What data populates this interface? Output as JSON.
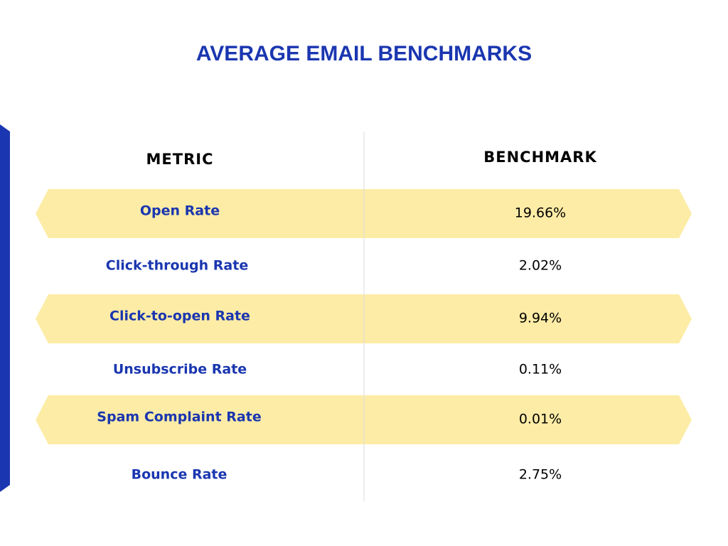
{
  "header": {
    "title": "AVERAGE EMAIL BENCHMARKS"
  },
  "table": {
    "columns": [
      "METRIC",
      "BENCHMARK"
    ],
    "rows": [
      [
        "Open Rate",
        "19.66%"
      ],
      [
        "Click-through Rate",
        "2.02%"
      ],
      [
        "Click-to-open Rate",
        "9.94%"
      ],
      [
        "Unsubscribe Rate",
        "0.11%"
      ],
      [
        "Spam Complaint Rate",
        "0.01%"
      ],
      [
        "Bounce Rate",
        "2.75%"
      ]
    ]
  }
}
